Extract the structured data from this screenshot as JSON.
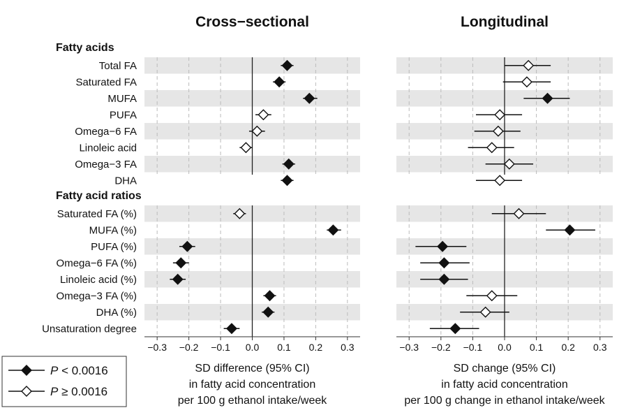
{
  "chart_data": {
    "type": "forest",
    "x_range": [
      -0.34,
      0.34
    ],
    "x_ticks": [
      -0.3,
      -0.2,
      -0.1,
      0.0,
      0.1,
      0.2,
      0.3
    ],
    "x_tick_labels": [
      "−0.3",
      "−0.2",
      "−0.1",
      "0.0",
      "0.1",
      "0.2",
      "0.3"
    ],
    "groups": [
      {
        "title": "Fatty acids",
        "rows": [
          "Total FA",
          "Saturated FA",
          "MUFA",
          "PUFA",
          "Omega−6 FA",
          "Linoleic acid",
          "Omega−3 FA",
          "DHA"
        ]
      },
      {
        "title": "Fatty acid ratios",
        "rows": [
          "Saturated FA (%)",
          "MUFA (%)",
          "PUFA (%)",
          "Omega−6 FA (%)",
          "Linoleic acid (%)",
          "Omega−3 FA (%)",
          "DHA (%)",
          "Unsaturation degree"
        ]
      }
    ],
    "panels": [
      {
        "title": "Cross−sectional",
        "xlabel_lines": [
          "SD difference (95% CI)",
          "in  fatty acid concentration",
          "per 100 g ethanol intake/week"
        ],
        "estimates": [
          [
            {
              "est": 0.11,
              "lo": 0.09,
              "hi": 0.13,
              "sig": true
            },
            {
              "est": 0.085,
              "lo": 0.065,
              "hi": 0.105,
              "sig": true
            },
            {
              "est": 0.18,
              "lo": 0.16,
              "hi": 0.205,
              "sig": true
            },
            {
              "est": 0.035,
              "lo": 0.01,
              "hi": 0.06,
              "sig": false
            },
            {
              "est": 0.015,
              "lo": -0.01,
              "hi": 0.04,
              "sig": false
            },
            {
              "est": -0.02,
              "lo": -0.04,
              "hi": 0.0,
              "sig": false
            },
            {
              "est": 0.115,
              "lo": 0.095,
              "hi": 0.135,
              "sig": true
            },
            {
              "est": 0.11,
              "lo": 0.09,
              "hi": 0.13,
              "sig": true
            }
          ],
          [
            {
              "est": -0.04,
              "lo": -0.06,
              "hi": -0.02,
              "sig": false
            },
            {
              "est": 0.255,
              "lo": 0.235,
              "hi": 0.28,
              "sig": true
            },
            {
              "est": -0.205,
              "lo": -0.23,
              "hi": -0.18,
              "sig": true
            },
            {
              "est": -0.225,
              "lo": -0.25,
              "hi": -0.2,
              "sig": true
            },
            {
              "est": -0.235,
              "lo": -0.26,
              "hi": -0.21,
              "sig": true
            },
            {
              "est": 0.055,
              "lo": 0.035,
              "hi": 0.075,
              "sig": true
            },
            {
              "est": 0.05,
              "lo": 0.03,
              "hi": 0.07,
              "sig": true
            },
            {
              "est": -0.065,
              "lo": -0.09,
              "hi": -0.04,
              "sig": true
            }
          ]
        ]
      },
      {
        "title": "Longitudinal",
        "xlabel_lines": [
          "SD change (95% CI)",
          "in  fatty acid concentration",
          "per 100 g change in ethanol intake/week"
        ],
        "estimates": [
          [
            {
              "est": 0.075,
              "lo": 0.0,
              "hi": 0.145,
              "sig": false
            },
            {
              "est": 0.07,
              "lo": -0.005,
              "hi": 0.145,
              "sig": false
            },
            {
              "est": 0.135,
              "lo": 0.06,
              "hi": 0.205,
              "sig": true
            },
            {
              "est": -0.015,
              "lo": -0.09,
              "hi": 0.055,
              "sig": false
            },
            {
              "est": -0.02,
              "lo": -0.095,
              "hi": 0.05,
              "sig": false
            },
            {
              "est": -0.04,
              "lo": -0.115,
              "hi": 0.03,
              "sig": false
            },
            {
              "est": 0.015,
              "lo": -0.06,
              "hi": 0.09,
              "sig": false
            },
            {
              "est": -0.015,
              "lo": -0.09,
              "hi": 0.055,
              "sig": false
            }
          ],
          [
            {
              "est": 0.045,
              "lo": -0.04,
              "hi": 0.13,
              "sig": false
            },
            {
              "est": 0.205,
              "lo": 0.13,
              "hi": 0.285,
              "sig": true
            },
            {
              "est": -0.195,
              "lo": -0.28,
              "hi": -0.12,
              "sig": true
            },
            {
              "est": -0.19,
              "lo": -0.265,
              "hi": -0.11,
              "sig": true
            },
            {
              "est": -0.19,
              "lo": -0.265,
              "hi": -0.115,
              "sig": true
            },
            {
              "est": -0.04,
              "lo": -0.12,
              "hi": 0.04,
              "sig": false
            },
            {
              "est": -0.06,
              "lo": -0.14,
              "hi": 0.015,
              "sig": false
            },
            {
              "est": -0.155,
              "lo": -0.235,
              "hi": -0.08,
              "sig": true
            }
          ]
        ]
      }
    ],
    "legend": [
      {
        "marker": "filled-diamond",
        "prefix": "P",
        "rest": " < 0.0016"
      },
      {
        "marker": "open-diamond",
        "prefix": "P",
        "rest": " ≥ 0.0016"
      }
    ],
    "colors": {
      "band": "#e6e6e6",
      "marker": "#111111",
      "grid": "#bbbbbb"
    }
  }
}
